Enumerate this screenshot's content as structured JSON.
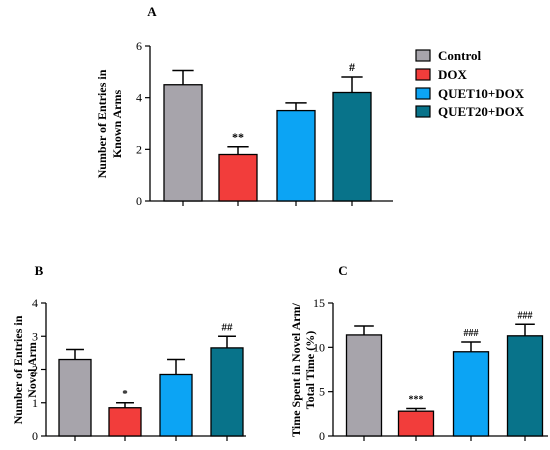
{
  "legend": {
    "entries": [
      {
        "label": "Control",
        "color": "#a7a4ab"
      },
      {
        "label": "DOX",
        "color": "#f23d3b"
      },
      {
        "label": "QUET10+DOX",
        "color": "#0ca4f4"
      },
      {
        "label": "QUET20+DOX",
        "color": "#08738a"
      }
    ]
  },
  "chart_data": [
    {
      "panel": "A",
      "type": "bar",
      "ylabel_lines": [
        "Number of Entries in",
        "Known Arms"
      ],
      "xlabel": "",
      "categories": [
        "Control",
        "DOX",
        "QUET10+DOX",
        "QUET20+DOX"
      ],
      "values": [
        4.5,
        1.8,
        3.5,
        4.2
      ],
      "errors": [
        0.55,
        0.3,
        0.3,
        0.6
      ],
      "annotations": [
        "",
        "**",
        "",
        "#"
      ],
      "ylim": [
        0,
        6
      ],
      "yticks": [
        0,
        2,
        4,
        6
      ],
      "grid": false,
      "legend_position": "right"
    },
    {
      "panel": "B",
      "type": "bar",
      "ylabel_lines": [
        "Number of Entries in",
        "Novel Arm"
      ],
      "xlabel": "",
      "categories": [
        "Control",
        "DOX",
        "QUET10+DOX",
        "QUET20+DOX"
      ],
      "values": [
        2.3,
        0.85,
        1.85,
        2.65
      ],
      "errors": [
        0.3,
        0.15,
        0.45,
        0.35
      ],
      "annotations": [
        "",
        "*",
        "",
        "##"
      ],
      "ylim": [
        0,
        4
      ],
      "yticks": [
        0,
        1,
        2,
        3,
        4
      ],
      "grid": false
    },
    {
      "panel": "C",
      "type": "bar",
      "ylabel_lines": [
        "Time Spent in Novel Arm/",
        "Total Time (%)"
      ],
      "xlabel": "",
      "categories": [
        "Control",
        "DOX",
        "QUET10+DOX",
        "QUET20+DOX"
      ],
      "values": [
        11.4,
        2.8,
        9.5,
        11.3
      ],
      "errors": [
        1.0,
        0.3,
        1.1,
        1.3
      ],
      "annotations": [
        "",
        "***",
        "###",
        "###"
      ],
      "ylim": [
        0,
        15
      ],
      "yticks": [
        0,
        5,
        10,
        15
      ],
      "grid": false
    }
  ]
}
